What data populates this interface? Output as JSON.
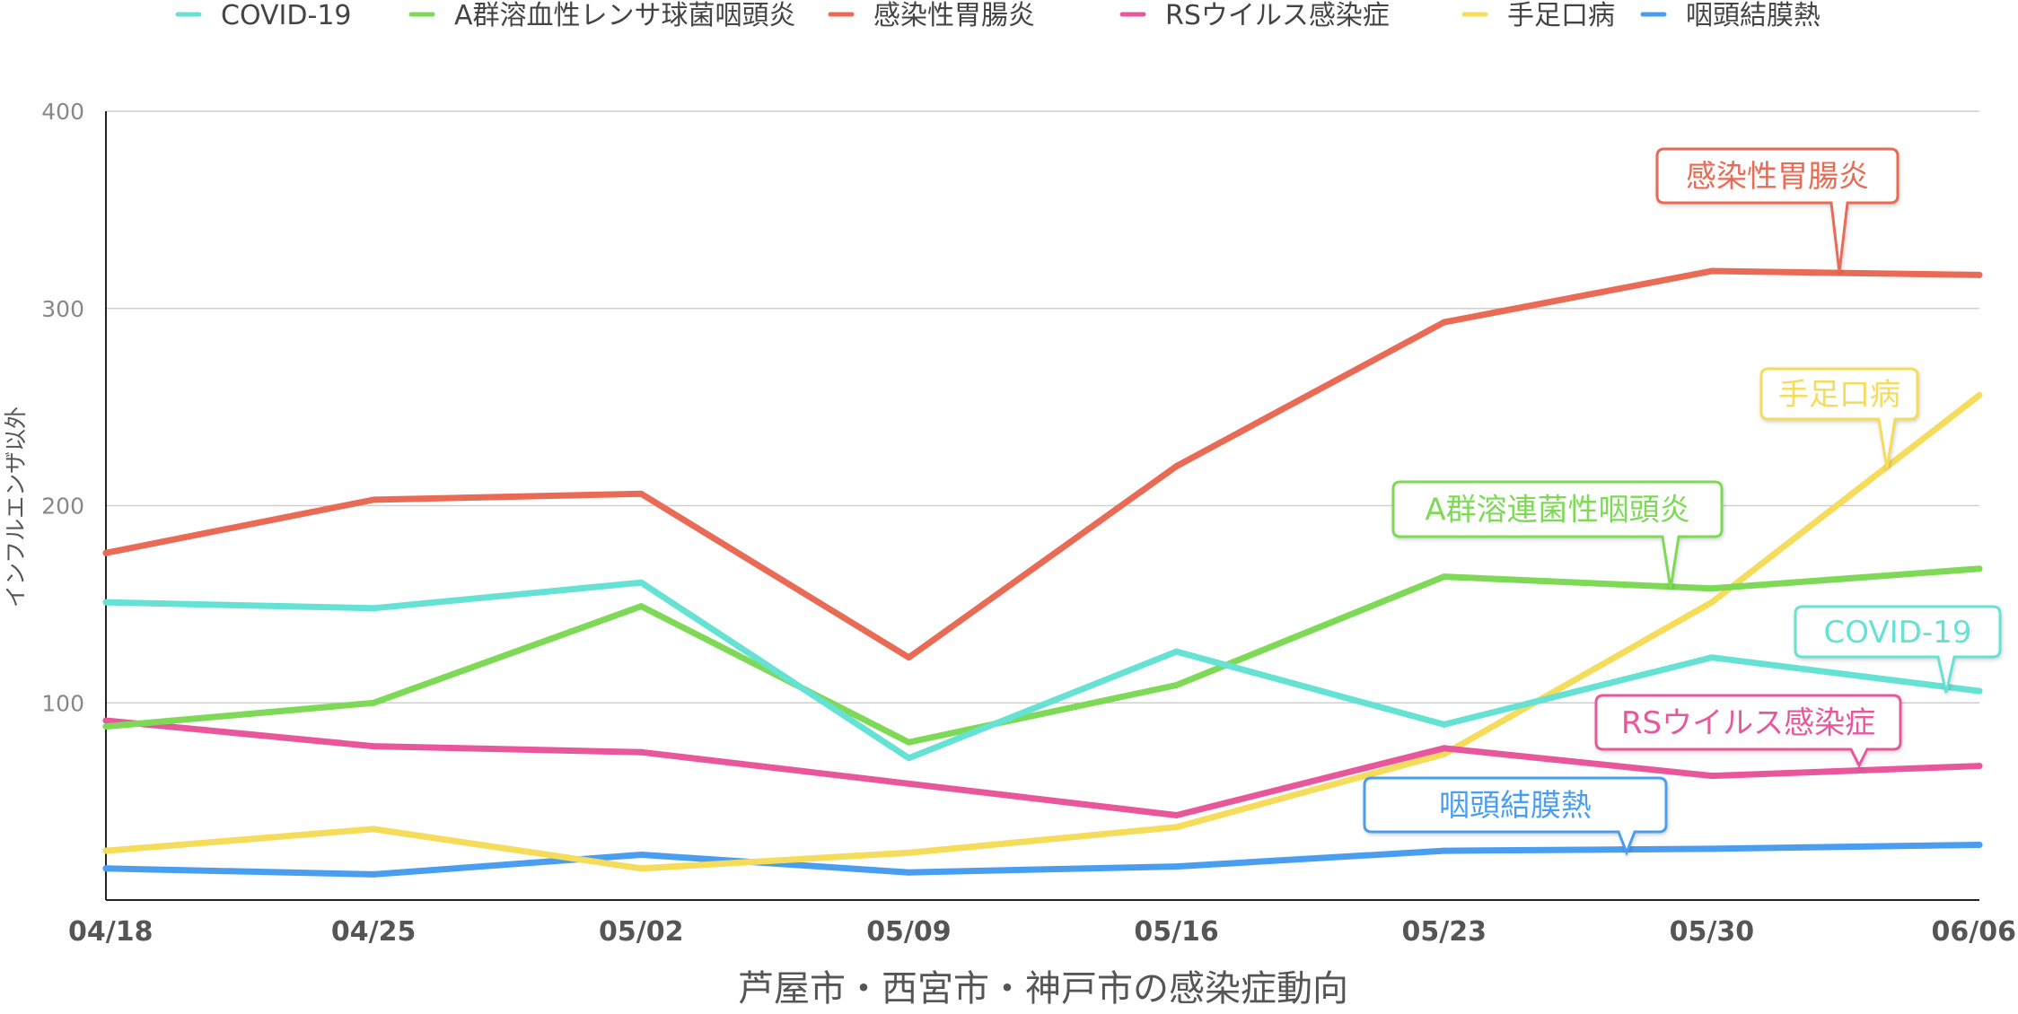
{
  "chart_data": {
    "type": "line",
    "x": [
      "04/18",
      "04/25",
      "05/02",
      "05/09",
      "05/16",
      "05/23",
      "05/30",
      "06/06"
    ],
    "xlabel": "芦屋市・西宮市・神戸市の感染症動向",
    "ylabel": "インフルエンザ以外",
    "ylim": [
      0,
      400
    ],
    "yticks": [
      100,
      200,
      300,
      400
    ],
    "grid": true,
    "legend_position": "top",
    "series": [
      {
        "name": "COVID-19",
        "color": "#66e2d5",
        "values": [
          151,
          148,
          161,
          72,
          126,
          89,
          123,
          106
        ],
        "callout": "COVID-19"
      },
      {
        "name": "A群溶血性レンサ球菌咽頭炎",
        "color": "#7ed957",
        "values": [
          88,
          100,
          149,
          80,
          109,
          164,
          158,
          168
        ],
        "callout": "A群溶連菌性咽頭炎"
      },
      {
        "name": "感染性胃腸炎",
        "color": "#ea6b55",
        "values": [
          176,
          203,
          206,
          123,
          220,
          293,
          319,
          317
        ],
        "callout": "感染性胃腸炎"
      },
      {
        "name": "RSウイルス感染症",
        "color": "#e8579c",
        "values": [
          91,
          78,
          75,
          59,
          43,
          77,
          63,
          68
        ],
        "callout": "RSウイルス感染症"
      },
      {
        "name": "手足口病",
        "color": "#f5dc5a",
        "values": [
          25,
          36,
          16,
          24,
          37,
          74,
          151,
          256
        ],
        "callout": "手足口病"
      },
      {
        "name": "咽頭結膜熱",
        "color": "#4a9ef0",
        "values": [
          16,
          13,
          23,
          14,
          17,
          25,
          26,
          28
        ],
        "callout": "咽頭結膜熱"
      }
    ]
  }
}
